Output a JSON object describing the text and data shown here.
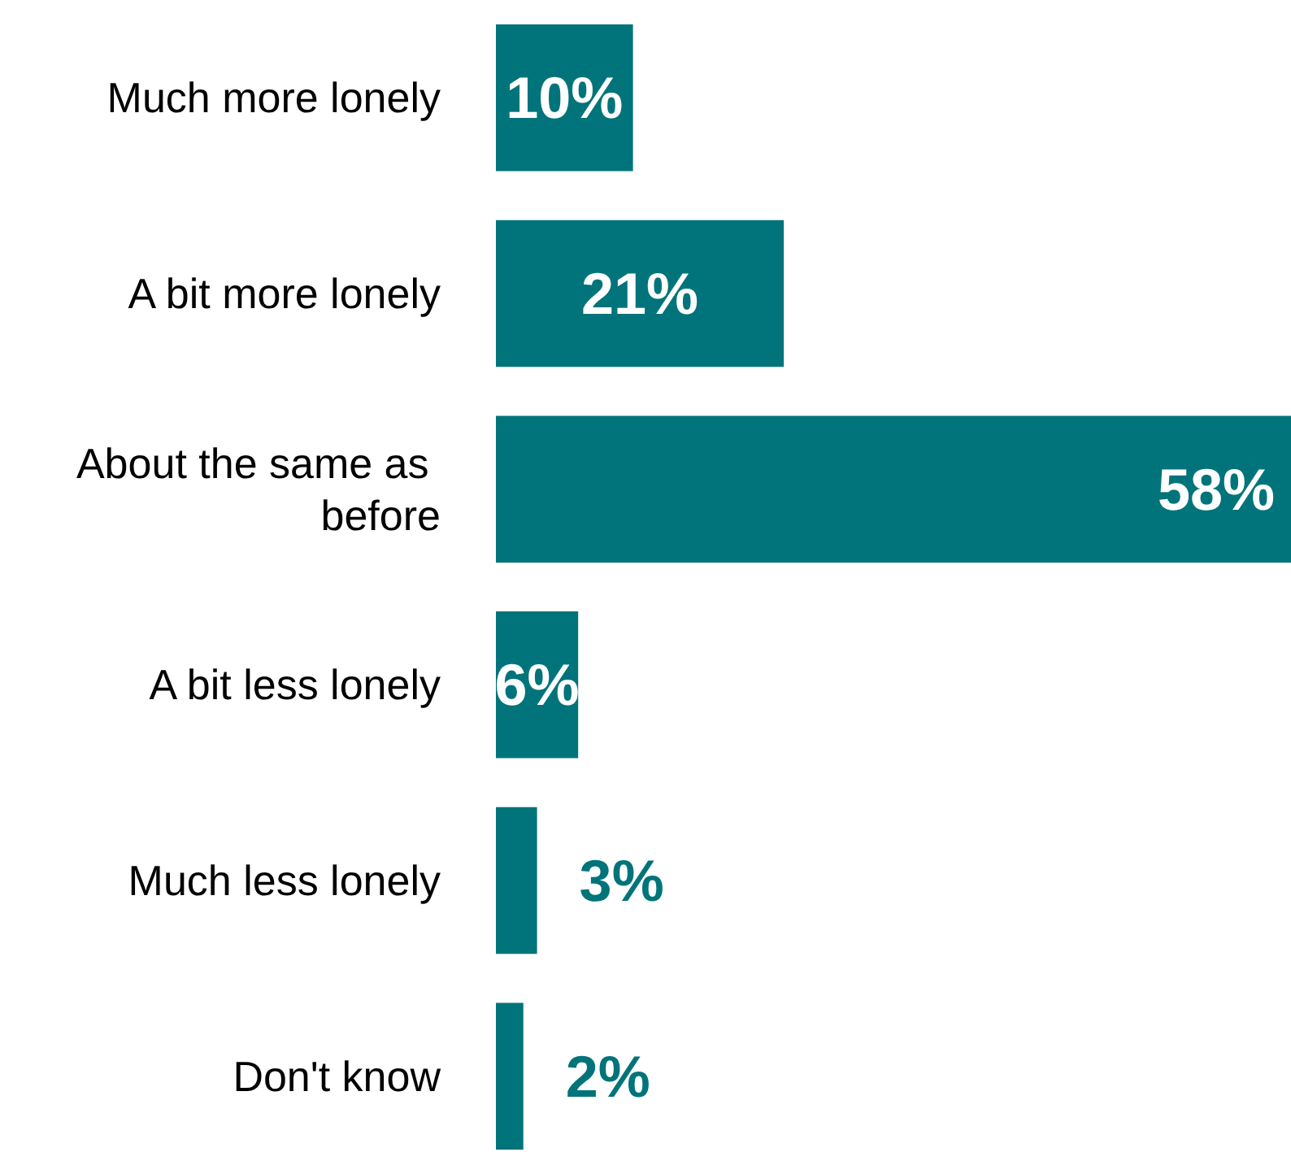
{
  "chart_data": {
    "type": "bar",
    "orientation": "horizontal",
    "categories": [
      "Much more lonely",
      "A bit more lonely",
      "About the same as before",
      "A bit less lonely",
      "Much less lonely",
      "Don't know"
    ],
    "values": [
      10,
      21,
      58,
      6,
      3,
      2
    ],
    "value_labels": [
      "10%",
      "21%",
      "58%",
      "6%",
      "3%",
      "2%"
    ],
    "color": "#00747a"
  }
}
